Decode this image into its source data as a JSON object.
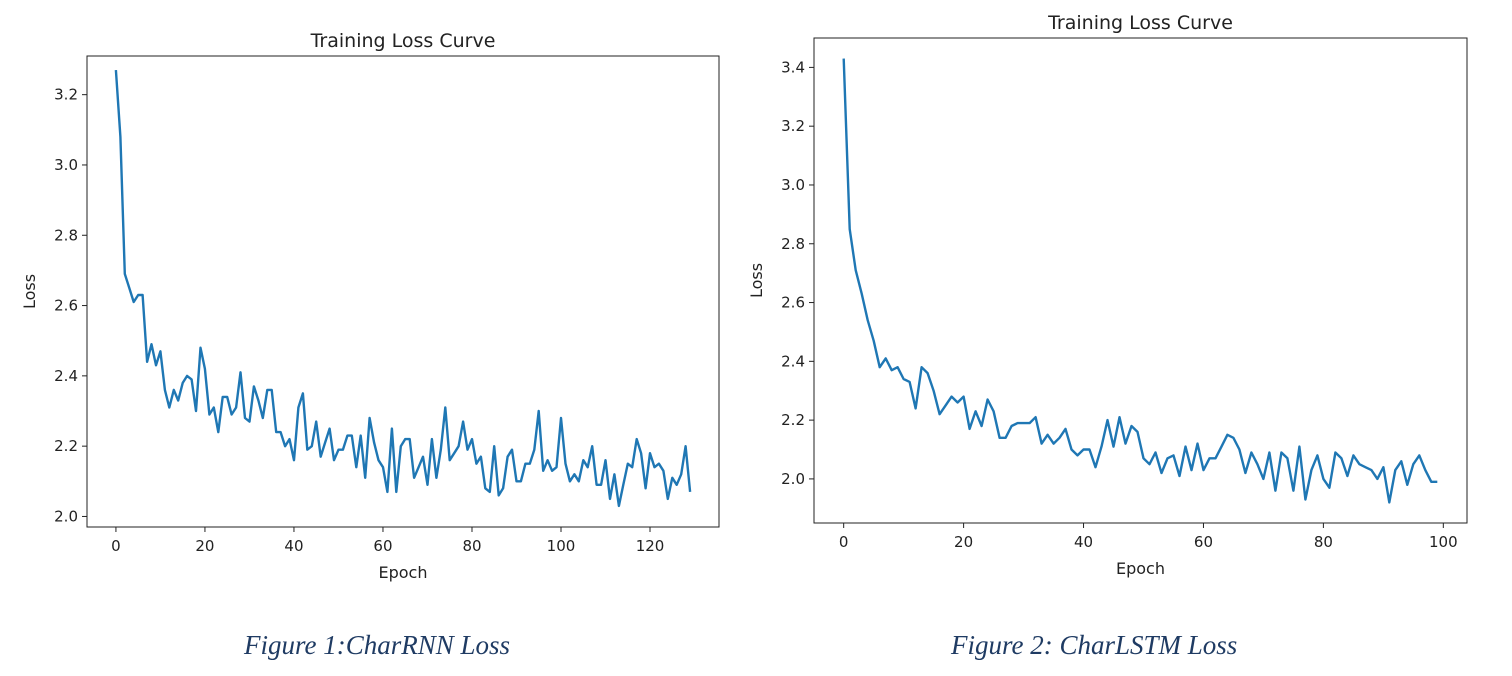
{
  "captions": [
    "Figure 1:CharRNN Loss",
    "Figure 2: CharLSTM Loss"
  ],
  "chart_data": [
    {
      "type": "line",
      "title": "Training Loss Curve",
      "xlabel": "Epoch",
      "ylabel": "Loss",
      "xlim": [
        -6.5,
        135.5
      ],
      "ylim": [
        1.97,
        3.31
      ],
      "xticks": [
        0,
        20,
        40,
        60,
        80,
        100,
        120
      ],
      "yticks": [
        2.0,
        2.2,
        2.4,
        2.6,
        2.8,
        3.0,
        3.2
      ],
      "ytick_labels": [
        "2.0",
        "2.2",
        "2.4",
        "2.6",
        "2.8",
        "3.0",
        "3.2"
      ],
      "grid": false,
      "line_color": "#1f77b4",
      "y": [
        3.27,
        3.08,
        2.69,
        2.65,
        2.61,
        2.63,
        2.63,
        2.44,
        2.49,
        2.43,
        2.47,
        2.36,
        2.31,
        2.36,
        2.33,
        2.38,
        2.4,
        2.39,
        2.3,
        2.48,
        2.42,
        2.29,
        2.31,
        2.24,
        2.34,
        2.34,
        2.29,
        2.31,
        2.41,
        2.28,
        2.27,
        2.37,
        2.33,
        2.28,
        2.36,
        2.36,
        2.24,
        2.24,
        2.2,
        2.22,
        2.16,
        2.31,
        2.35,
        2.19,
        2.2,
        2.27,
        2.17,
        2.21,
        2.25,
        2.16,
        2.19,
        2.19,
        2.23,
        2.23,
        2.14,
        2.23,
        2.11,
        2.28,
        2.21,
        2.16,
        2.14,
        2.07,
        2.25,
        2.07,
        2.2,
        2.22,
        2.22,
        2.11,
        2.14,
        2.17,
        2.09,
        2.22,
        2.11,
        2.19,
        2.31,
        2.16,
        2.18,
        2.2,
        2.27,
        2.19,
        2.22,
        2.15,
        2.17,
        2.08,
        2.07,
        2.2,
        2.06,
        2.08,
        2.17,
        2.19,
        2.1,
        2.1,
        2.15,
        2.15,
        2.19,
        2.3,
        2.13,
        2.16,
        2.13,
        2.14,
        2.28,
        2.15,
        2.1,
        2.12,
        2.1,
        2.16,
        2.14,
        2.2,
        2.09,
        2.09,
        2.16,
        2.05,
        2.12,
        2.03,
        2.09,
        2.15,
        2.14,
        2.22,
        2.18,
        2.08,
        2.18,
        2.14,
        2.15,
        2.13,
        2.05,
        2.11,
        2.09,
        2.12,
        2.2,
        2.07
      ]
    },
    {
      "type": "line",
      "title": "Training Loss Curve",
      "xlabel": "Epoch",
      "ylabel": "Loss",
      "xlim": [
        -4.95,
        103.95
      ],
      "ylim": [
        1.85,
        3.5
      ],
      "xticks": [
        0,
        20,
        40,
        60,
        80,
        100
      ],
      "yticks": [
        2.0,
        2.2,
        2.4,
        2.6,
        2.8,
        3.0,
        3.2,
        3.4
      ],
      "ytick_labels": [
        "2.0",
        "2.2",
        "2.4",
        "2.6",
        "2.8",
        "3.0",
        "3.2",
        "3.4"
      ],
      "grid": false,
      "line_color": "#1f77b4",
      "y": [
        3.43,
        2.85,
        2.71,
        2.63,
        2.54,
        2.47,
        2.38,
        2.41,
        2.37,
        2.38,
        2.34,
        2.33,
        2.24,
        2.38,
        2.36,
        2.3,
        2.22,
        2.25,
        2.28,
        2.26,
        2.28,
        2.17,
        2.23,
        2.18,
        2.27,
        2.23,
        2.14,
        2.14,
        2.18,
        2.19,
        2.19,
        2.19,
        2.21,
        2.12,
        2.15,
        2.12,
        2.14,
        2.17,
        2.1,
        2.08,
        2.1,
        2.1,
        2.04,
        2.11,
        2.2,
        2.11,
        2.21,
        2.12,
        2.18,
        2.16,
        2.07,
        2.05,
        2.09,
        2.02,
        2.07,
        2.08,
        2.01,
        2.11,
        2.03,
        2.12,
        2.03,
        2.07,
        2.07,
        2.11,
        2.15,
        2.14,
        2.1,
        2.02,
        2.09,
        2.05,
        2.0,
        2.09,
        1.96,
        2.09,
        2.07,
        1.96,
        2.11,
        1.93,
        2.03,
        2.08,
        2.0,
        1.97,
        2.09,
        2.07,
        2.01,
        2.08,
        2.05,
        2.04,
        2.03,
        2.0,
        2.04,
        1.92,
        2.03,
        2.06,
        1.98,
        2.05,
        2.08,
        2.03,
        1.99,
        1.99
      ]
    }
  ]
}
